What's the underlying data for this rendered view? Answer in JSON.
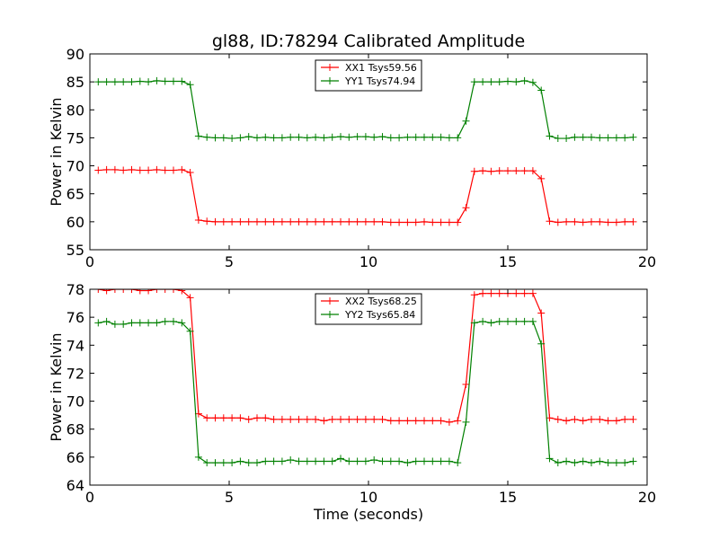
{
  "figure": {
    "title": "gl88, ID:78294 Calibrated Amplitude",
    "xlabel": "Time (seconds)"
  },
  "chart_data": [
    {
      "type": "line",
      "title": "gl88, ID:78294 Calibrated Amplitude",
      "xlabel": "",
      "ylabel": "Power in Kelvin",
      "xlim": [
        0,
        20
      ],
      "ylim": [
        55,
        90
      ],
      "xticks": [
        "0",
        "5",
        "10",
        "15",
        "20"
      ],
      "yticks": [
        "55",
        "60",
        "65",
        "70",
        "75",
        "80",
        "85",
        "90"
      ],
      "legend": "top-center",
      "x": [
        0.3,
        0.6,
        0.9,
        1.2,
        1.5,
        1.8,
        2.1,
        2.4,
        2.7,
        3.0,
        3.3,
        3.6,
        3.9,
        4.2,
        4.5,
        4.8,
        5.1,
        5.4,
        5.7,
        6.0,
        6.3,
        6.6,
        6.9,
        7.2,
        7.5,
        7.8,
        8.1,
        8.4,
        8.7,
        9.0,
        9.3,
        9.6,
        9.9,
        10.2,
        10.5,
        10.8,
        11.1,
        11.4,
        11.7,
        12.0,
        12.3,
        12.6,
        12.9,
        13.2,
        13.5,
        13.8,
        14.1,
        14.4,
        14.7,
        15.0,
        15.3,
        15.6,
        15.9,
        16.2,
        16.5,
        16.8,
        17.1,
        17.4,
        17.7,
        18.0,
        18.3,
        18.6,
        18.9,
        19.2,
        19.5
      ],
      "series": [
        {
          "name": "XX1 Tsys59.56",
          "color": "#ff0000",
          "values": [
            69.2,
            69.3,
            69.3,
            69.2,
            69.3,
            69.2,
            69.2,
            69.3,
            69.2,
            69.2,
            69.3,
            68.8,
            60.3,
            60.1,
            60.0,
            60.0,
            60.0,
            60.0,
            60.0,
            60.0,
            60.0,
            60.0,
            60.0,
            60.0,
            60.0,
            60.0,
            60.0,
            60.0,
            60.0,
            60.0,
            60.0,
            60.0,
            60.0,
            60.0,
            60.0,
            59.9,
            59.9,
            59.9,
            59.9,
            60.0,
            59.9,
            59.9,
            59.9,
            59.9,
            62.5,
            69.0,
            69.1,
            69.0,
            69.1,
            69.1,
            69.1,
            69.1,
            69.1,
            67.7,
            60.1,
            59.9,
            60.0,
            60.0,
            59.9,
            60.0,
            60.0,
            59.9,
            59.9,
            60.0,
            60.0
          ]
        },
        {
          "name": "YY1 Tsys74.94",
          "color": "#008000",
          "values": [
            85.0,
            85.0,
            85.0,
            85.0,
            85.0,
            85.1,
            85.0,
            85.2,
            85.1,
            85.1,
            85.1,
            84.5,
            75.3,
            75.1,
            75.0,
            75.0,
            74.9,
            75.0,
            75.2,
            75.0,
            75.1,
            75.0,
            75.0,
            75.1,
            75.1,
            75.0,
            75.1,
            75.0,
            75.1,
            75.2,
            75.1,
            75.2,
            75.2,
            75.1,
            75.2,
            75.0,
            75.0,
            75.1,
            75.1,
            75.1,
            75.1,
            75.1,
            75.0,
            75.0,
            78.0,
            85.0,
            85.0,
            85.0,
            85.0,
            85.1,
            85.0,
            85.2,
            84.9,
            83.5,
            75.3,
            74.9,
            74.9,
            75.1,
            75.1,
            75.1,
            75.0,
            75.0,
            75.0,
            75.0,
            75.1
          ]
        }
      ]
    },
    {
      "type": "line",
      "title": "",
      "xlabel": "Time (seconds)",
      "ylabel": "Power in Kelvin",
      "xlim": [
        0,
        20
      ],
      "ylim": [
        64,
        78
      ],
      "xticks": [
        "0",
        "5",
        "10",
        "15",
        "20"
      ],
      "yticks": [
        "64",
        "66",
        "68",
        "70",
        "72",
        "74",
        "76",
        "78"
      ],
      "legend": "top-center",
      "x": [
        0.3,
        0.6,
        0.9,
        1.2,
        1.5,
        1.8,
        2.1,
        2.4,
        2.7,
        3.0,
        3.3,
        3.6,
        3.9,
        4.2,
        4.5,
        4.8,
        5.1,
        5.4,
        5.7,
        6.0,
        6.3,
        6.6,
        6.9,
        7.2,
        7.5,
        7.8,
        8.1,
        8.4,
        8.7,
        9.0,
        9.3,
        9.6,
        9.9,
        10.2,
        10.5,
        10.8,
        11.1,
        11.4,
        11.7,
        12.0,
        12.3,
        12.6,
        12.9,
        13.2,
        13.5,
        13.8,
        14.1,
        14.4,
        14.7,
        15.0,
        15.3,
        15.6,
        15.9,
        16.2,
        16.5,
        16.8,
        17.1,
        17.4,
        17.7,
        18.0,
        18.3,
        18.6,
        18.9,
        19.2,
        19.5
      ],
      "series": [
        {
          "name": "XX2 Tsys68.25",
          "color": "#ff0000",
          "values": [
            78.0,
            77.9,
            78.0,
            78.0,
            78.0,
            77.9,
            77.9,
            78.0,
            78.0,
            78.0,
            77.9,
            77.4,
            69.1,
            68.8,
            68.8,
            68.8,
            68.8,
            68.8,
            68.7,
            68.8,
            68.8,
            68.7,
            68.7,
            68.7,
            68.7,
            68.7,
            68.7,
            68.6,
            68.7,
            68.7,
            68.7,
            68.7,
            68.7,
            68.7,
            68.7,
            68.6,
            68.6,
            68.6,
            68.6,
            68.6,
            68.6,
            68.6,
            68.5,
            68.6,
            71.2,
            77.6,
            77.7,
            77.7,
            77.7,
            77.7,
            77.7,
            77.7,
            77.7,
            76.3,
            68.8,
            68.7,
            68.6,
            68.7,
            68.6,
            68.7,
            68.7,
            68.6,
            68.6,
            68.7,
            68.7
          ]
        },
        {
          "name": "YY2 Tsys65.84",
          "color": "#008000",
          "values": [
            75.6,
            75.7,
            75.5,
            75.5,
            75.6,
            75.6,
            75.6,
            75.6,
            75.7,
            75.7,
            75.6,
            75.0,
            66.0,
            65.6,
            65.6,
            65.6,
            65.6,
            65.7,
            65.6,
            65.6,
            65.7,
            65.7,
            65.7,
            65.8,
            65.7,
            65.7,
            65.7,
            65.7,
            65.7,
            65.9,
            65.7,
            65.7,
            65.7,
            65.8,
            65.7,
            65.7,
            65.7,
            65.6,
            65.7,
            65.7,
            65.7,
            65.7,
            65.7,
            65.6,
            68.5,
            75.6,
            75.7,
            75.6,
            75.7,
            75.7,
            75.7,
            75.7,
            75.7,
            74.1,
            65.9,
            65.6,
            65.7,
            65.6,
            65.7,
            65.6,
            65.7,
            65.6,
            65.6,
            65.6,
            65.7
          ]
        }
      ]
    }
  ]
}
